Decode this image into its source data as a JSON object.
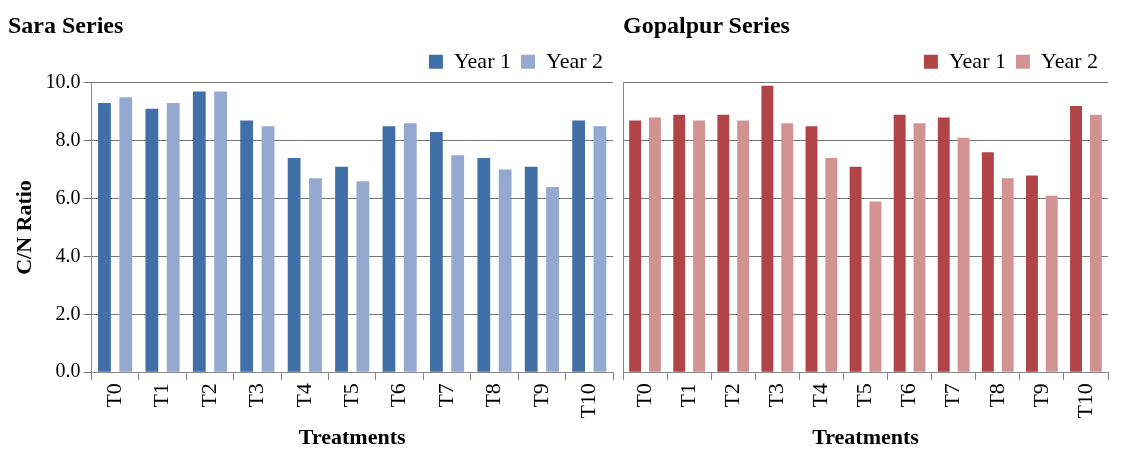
{
  "chart_data": [
    {
      "type": "bar",
      "title": "Sara Series",
      "xlabel": "Treatments",
      "ylabel": "C/N Ratio",
      "categories": [
        "T0",
        "T1",
        "T2",
        "T3",
        "T4",
        "T5",
        "T6",
        "T7",
        "T8",
        "T9",
        "T10"
      ],
      "series": [
        {
          "name": "Year 1",
          "color": "#4170a8",
          "values": [
            9.3,
            9.1,
            9.7,
            8.7,
            7.4,
            7.1,
            8.5,
            8.3,
            7.4,
            7.1,
            8.7
          ]
        },
        {
          "name": "Year 2",
          "color": "#93a9cf",
          "values": [
            9.5,
            9.3,
            9.7,
            8.5,
            6.7,
            6.6,
            8.6,
            7.5,
            7.0,
            6.4,
            8.5
          ]
        }
      ],
      "ylim": [
        0,
        10
      ],
      "yticks": [
        {
          "value": 0,
          "label": "0.0"
        },
        {
          "value": 2,
          "label": "2.0"
        },
        {
          "value": 4,
          "label": "4.0"
        },
        {
          "value": 6,
          "label": "6.0"
        },
        {
          "value": 8,
          "label": "8.0"
        },
        {
          "value": 10,
          "label": "10.0"
        }
      ],
      "grid": "y",
      "legend": "top right"
    },
    {
      "type": "bar",
      "title": "Gopalpur Series",
      "xlabel": "Treatments",
      "categories": [
        "T0",
        "T1",
        "T2",
        "T3",
        "T4",
        "T5",
        "T6",
        "T7",
        "T8",
        "T9",
        "T10"
      ],
      "series": [
        {
          "name": "Year 1",
          "color": "#b04446",
          "values": [
            8.7,
            8.9,
            8.9,
            9.9,
            8.5,
            7.1,
            8.9,
            8.8,
            7.6,
            6.8,
            9.2
          ]
        },
        {
          "name": "Year 2",
          "color": "#d39292",
          "values": [
            8.8,
            8.7,
            8.7,
            8.6,
            7.4,
            5.9,
            8.6,
            8.1,
            6.7,
            6.1,
            8.9
          ]
        }
      ],
      "ylim": [
        0,
        10
      ],
      "yticks": [
        0,
        2,
        4,
        6,
        8,
        10
      ],
      "tick_labels": "x",
      "grid": "y",
      "legend": "top right"
    }
  ]
}
